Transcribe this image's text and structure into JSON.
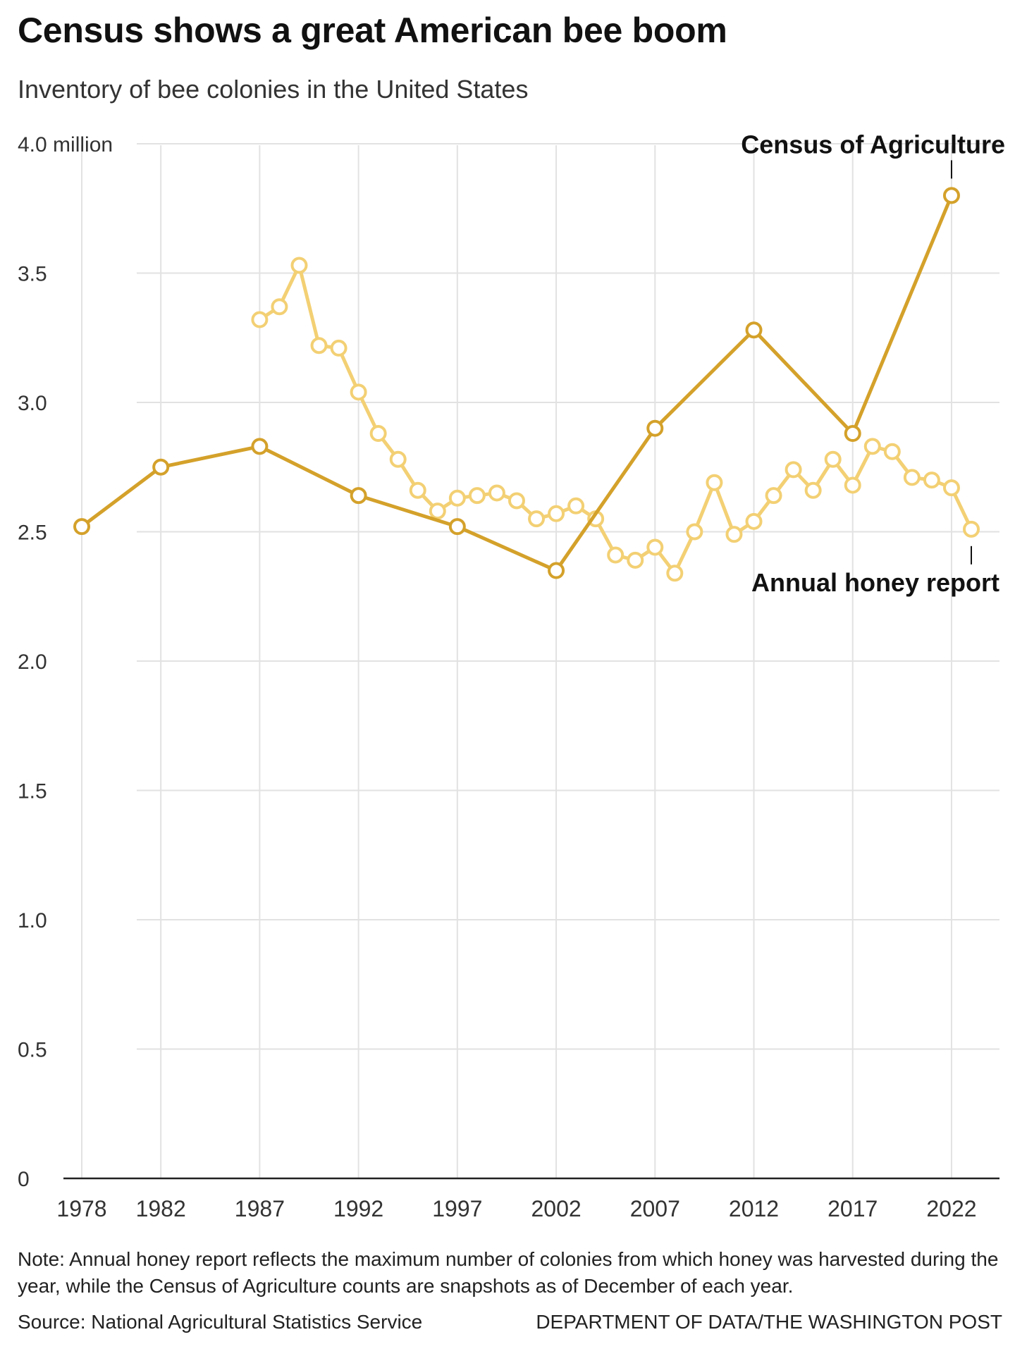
{
  "header": {
    "title": "Census shows a great American bee boom",
    "subtitle": "Inventory of bee colonies in the United States"
  },
  "footer": {
    "note": "Note: Annual honey report reflects the maximum number of colonies from which honey was harvested during the year, while the Census of Agriculture counts are snapshots as of December of each year.",
    "source": "Source: National Agricultural Statistics Service",
    "credit": "DEPARTMENT OF DATA/THE WASHINGTON POST"
  },
  "colors": {
    "census": "#d4a12a",
    "honey": "#f3d074",
    "grid": "#e2e2e2",
    "axis": "#222222",
    "text": "#222222"
  },
  "chart_data": {
    "type": "line",
    "title": "Census shows a great American bee boom",
    "subtitle": "Inventory of bee colonies in the United States",
    "xlabel": "",
    "ylabel": "",
    "xlim": [
      1978,
      2023
    ],
    "ylim": [
      0,
      4.0
    ],
    "grid": true,
    "legend": "direct labels",
    "y_ticks": [
      0,
      0.5,
      1.0,
      1.5,
      2.0,
      2.5,
      3.0,
      3.5,
      4.0
    ],
    "y_tick_labels": [
      "0",
      "0.5",
      "1.0",
      "1.5",
      "2.0",
      "2.5",
      "3.0",
      "3.5",
      "4.0 million"
    ],
    "x_ticks": [
      1978,
      1982,
      1987,
      1992,
      1997,
      2002,
      2007,
      2012,
      2017,
      2022
    ],
    "x_tick_labels": [
      "1978",
      "1982",
      "1987",
      "1992",
      "1997",
      "2002",
      "2007",
      "2012",
      "2017",
      "2022"
    ],
    "series": [
      {
        "name": "Census of Agriculture",
        "color": "#d4a12a",
        "x": [
          1978,
          1982,
          1987,
          1992,
          1997,
          2002,
          2007,
          2012,
          2017,
          2022
        ],
        "y": [
          2.52,
          2.75,
          2.83,
          2.64,
          2.52,
          2.35,
          2.9,
          3.28,
          2.88,
          3.8
        ]
      },
      {
        "name": "Annual honey report",
        "color": "#f3d074",
        "x": [
          1987,
          1988,
          1989,
          1990,
          1991,
          1992,
          1993,
          1994,
          1995,
          1996,
          1997,
          1998,
          1999,
          2000,
          2001,
          2002,
          2003,
          2004,
          2005,
          2006,
          2007,
          2008,
          2009,
          2010,
          2011,
          2012,
          2013,
          2014,
          2015,
          2016,
          2017,
          2018,
          2019,
          2020,
          2021,
          2022,
          2023
        ],
        "y": [
          3.32,
          3.37,
          3.53,
          3.22,
          3.21,
          3.04,
          2.88,
          2.78,
          2.66,
          2.58,
          2.63,
          2.64,
          2.65,
          2.62,
          2.55,
          2.57,
          2.6,
          2.55,
          2.41,
          2.39,
          2.44,
          2.34,
          2.5,
          2.69,
          2.49,
          2.54,
          2.64,
          2.74,
          2.66,
          2.78,
          2.68,
          2.83,
          2.81,
          2.71,
          2.7,
          2.67,
          2.51
        ]
      }
    ]
  }
}
